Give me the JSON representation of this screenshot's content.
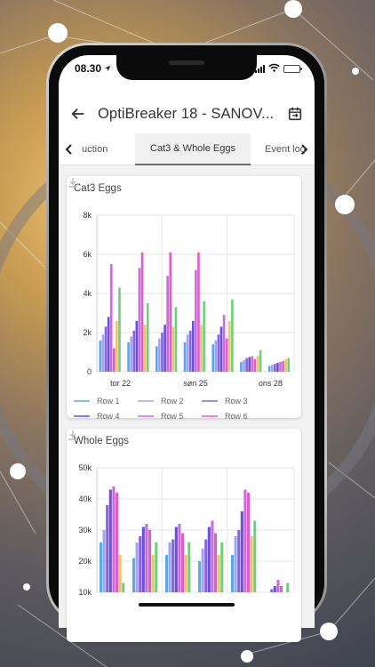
{
  "status": {
    "time": "08.30"
  },
  "app_bar": {
    "title": "OptiBreaker 18 - SANOV..."
  },
  "tabs": [
    {
      "label": "uction"
    },
    {
      "label": "Cat3 & Whole Eggs"
    },
    {
      "label": "Event log"
    }
  ],
  "colors": {
    "row1": "#5aa9e6",
    "row2": "#9aa6f0",
    "row3": "#8a5fe0",
    "row4": "#6a4fd8",
    "row5": "#c86ae0",
    "row6": "#e05cc8",
    "row7": "#f0c36a",
    "row8": "#6fd07a"
  },
  "charts": [
    {
      "title": "Cat3 Eggs",
      "chart_data": {
        "type": "bar",
        "ylim": [
          0,
          8000
        ],
        "yticks": [
          "0",
          "2k",
          "4k",
          "6k",
          "8k"
        ],
        "xticks": [
          "tor 22",
          "søn 25",
          "ons 28"
        ],
        "legend": [
          "Row 1",
          "Row 2",
          "Row 3",
          "Row 4",
          "Row 5",
          "Row 6"
        ],
        "series": [
          {
            "name": "Row 1",
            "values": [
              1600,
              1500,
              1300,
              1500,
              1400,
              500,
              300
            ]
          },
          {
            "name": "Row 2",
            "values": [
              1900,
              1800,
              1700,
              1900,
              1600,
              600,
              350
            ]
          },
          {
            "name": "Row 3",
            "values": [
              2300,
              2100,
              2000,
              2100,
              1900,
              700,
              400
            ]
          },
          {
            "name": "Row 4",
            "values": [
              2800,
              2600,
              2400,
              2600,
              2300,
              750,
              450
            ]
          },
          {
            "name": "Row 5",
            "values": [
              5500,
              5300,
              4900,
              5200,
              2900,
              800,
              500
            ]
          },
          {
            "name": "Row 6",
            "values": [
              1200,
              6100,
              6100,
              6100,
              1700,
              650,
              550
            ]
          },
          {
            "values": [
              2600,
              2400,
              2300,
              2400,
              2600,
              800,
              650
            ]
          },
          {
            "values": [
              4300,
              3500,
              3300,
              3600,
              3700,
              1100,
              700
            ]
          }
        ]
      }
    },
    {
      "title": "Whole Eggs",
      "chart_data": {
        "type": "bar",
        "ylim": [
          10000,
          50000
        ],
        "yticks": [
          "10k",
          "20k",
          "30k",
          "40k",
          "50k"
        ],
        "series": [
          {
            "values": [
              26000,
              21000,
              22000,
              20000,
              22000,
              9000
            ]
          },
          {
            "values": [
              30000,
              26000,
              26000,
              24000,
              28000,
              10000
            ]
          },
          {
            "values": [
              38000,
              28000,
              27000,
              27000,
              30000,
              11000
            ]
          },
          {
            "values": [
              43000,
              31000,
              31000,
              31000,
              36000,
              12000
            ]
          },
          {
            "values": [
              44000,
              32000,
              32000,
              33000,
              43000,
              14000
            ]
          },
          {
            "values": [
              42000,
              30000,
              29000,
              29000,
              42000,
              12000
            ]
          },
          {
            "values": [
              22000,
              22000,
              22000,
              22000,
              28000,
              10000
            ]
          },
          {
            "values": [
              13000,
              26000,
              26000,
              26000,
              33000,
              13000
            ]
          }
        ]
      }
    }
  ]
}
